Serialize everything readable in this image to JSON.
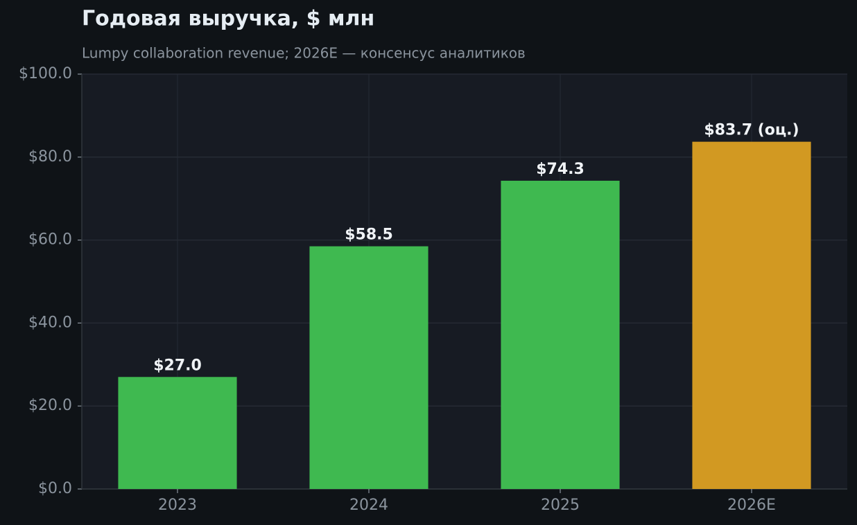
{
  "chart_data": {
    "type": "bar",
    "title": "Годовая выручка, $ млн",
    "subtitle": "Lumpy collaboration revenue; 2026E — консенсус аналитиков",
    "categories": [
      "2023",
      "2024",
      "2025",
      "2026E"
    ],
    "values": [
      27.0,
      58.5,
      74.3,
      83.7
    ],
    "value_labels": [
      "$27.0",
      "$58.5",
      "$74.3",
      "$83.7 (оц.)"
    ],
    "colors": [
      "#3fb950",
      "#3fb950",
      "#3fb950",
      "#d29922"
    ],
    "ylim": [
      0,
      100
    ],
    "yticks": [
      {
        "value": 0,
        "label": "$0.0"
      },
      {
        "value": 20,
        "label": "$20.0"
      },
      {
        "value": 40,
        "label": "$40.0"
      },
      {
        "value": 60,
        "label": "$60.0"
      },
      {
        "value": 80,
        "label": "$80.0"
      },
      {
        "value": 100,
        "label": "$100.0"
      }
    ],
    "grid": true
  }
}
